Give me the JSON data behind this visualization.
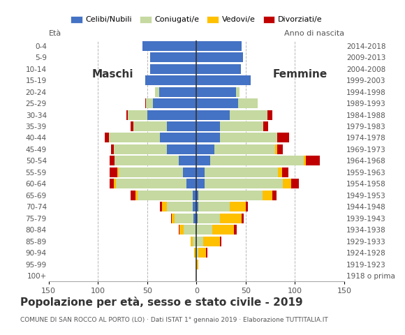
{
  "age_groups": [
    "100+",
    "95-99",
    "90-94",
    "85-89",
    "80-84",
    "75-79",
    "70-74",
    "65-69",
    "60-64",
    "55-59",
    "50-54",
    "45-49",
    "40-44",
    "35-39",
    "30-34",
    "25-29",
    "20-24",
    "15-19",
    "10-14",
    "5-9",
    "0-4"
  ],
  "birth_years": [
    "1918 o prima",
    "1919-1923",
    "1924-1928",
    "1929-1933",
    "1934-1938",
    "1939-1943",
    "1944-1948",
    "1949-1953",
    "1954-1958",
    "1959-1963",
    "1964-1968",
    "1969-1973",
    "1974-1978",
    "1979-1983",
    "1984-1988",
    "1989-1993",
    "1994-1998",
    "1999-2003",
    "2004-2008",
    "2009-2013",
    "2014-2018"
  ],
  "colors": {
    "celibe": "#4472c4",
    "coniugato": "#c5d9a0",
    "vedovo": "#ffc000",
    "divorziato": "#c00000"
  },
  "males": {
    "celibe": [
      0,
      0,
      0,
      0,
      1,
      3,
      4,
      4,
      10,
      14,
      18,
      30,
      37,
      30,
      50,
      44,
      38,
      52,
      47,
      47,
      55
    ],
    "coniugato": [
      0,
      0,
      1,
      4,
      12,
      19,
      26,
      56,
      72,
      65,
      65,
      54,
      52,
      34,
      20,
      7,
      4,
      0,
      0,
      0,
      0
    ],
    "vedovo": [
      0,
      0,
      1,
      2,
      4,
      3,
      5,
      2,
      2,
      1,
      0,
      0,
      0,
      0,
      0,
      0,
      0,
      0,
      0,
      0,
      0
    ],
    "divorziato": [
      0,
      0,
      0,
      0,
      1,
      1,
      2,
      5,
      4,
      8,
      5,
      3,
      4,
      3,
      1,
      1,
      0,
      0,
      0,
      0,
      0
    ]
  },
  "females": {
    "nubile": [
      0,
      0,
      0,
      0,
      0,
      1,
      2,
      2,
      8,
      8,
      14,
      18,
      24,
      24,
      34,
      42,
      40,
      55,
      45,
      47,
      46
    ],
    "coniugata": [
      0,
      0,
      2,
      7,
      16,
      23,
      32,
      65,
      80,
      75,
      95,
      62,
      58,
      44,
      38,
      20,
      4,
      0,
      0,
      0,
      0
    ],
    "vedova": [
      0,
      2,
      8,
      17,
      22,
      22,
      16,
      10,
      8,
      4,
      2,
      2,
      0,
      0,
      0,
      0,
      0,
      0,
      0,
      0,
      0
    ],
    "divorziata": [
      0,
      0,
      1,
      1,
      3,
      2,
      2,
      4,
      8,
      6,
      14,
      6,
      12,
      5,
      5,
      0,
      0,
      0,
      0,
      0,
      0
    ]
  },
  "xlim": 150,
  "title": "Popolazione per età, sesso e stato civile - 2019",
  "subtitle": "COMUNE DI SAN ROCCO AL PORTO (LO) · Dati ISTAT 1° gennaio 2019 · Elaborazione TUTTITALIA.IT",
  "xlabel_left": "Età",
  "label_maschi": "Maschi",
  "label_femmine": "Femmine",
  "label_anno": "Anno di nascita",
  "legend_labels": [
    "Celibi/Nubili",
    "Coniugati/e",
    "Vedovi/e",
    "Divorziati/e"
  ],
  "bg_color": "#ffffff",
  "grid_color": "#999999",
  "bar_height": 0.85
}
